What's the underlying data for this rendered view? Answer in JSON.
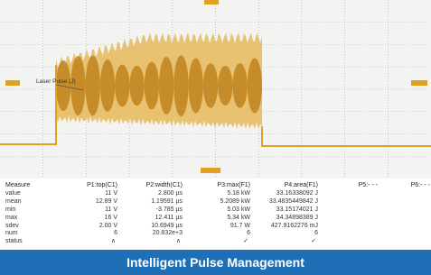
{
  "waveform_label": "Laser Pulse (J)",
  "table": {
    "header": [
      "Measure",
      "P1:top(C1)",
      "P2:width(C1)",
      "P3:max(F1)",
      "P4:area(F1)",
      "P5:- - -",
      "P6:- - -"
    ],
    "rows": [
      [
        "value",
        "11 V",
        "2.800 µs",
        "5.18 kW",
        "33.16338092 J"
      ],
      [
        "mean",
        "12.89 V",
        "1.19591 µs",
        "5.2089 kW",
        "33.4835449842 J"
      ],
      [
        "min",
        "11 V",
        "-3.785 µs",
        "5.03 kW",
        "33.15174021 J"
      ],
      [
        "max",
        "16 V",
        "12.411 µs",
        "5.34 kW",
        "34.34898389 J"
      ],
      [
        "sdev",
        "2.00 V",
        "10.6949 µs",
        "91.7 W",
        "427.9162276 mJ"
      ],
      [
        "num",
        "6",
        "20.832e+3",
        "6",
        "6"
      ],
      [
        "status"
      ]
    ]
  },
  "caption": "Intelligent Pulse Management"
}
